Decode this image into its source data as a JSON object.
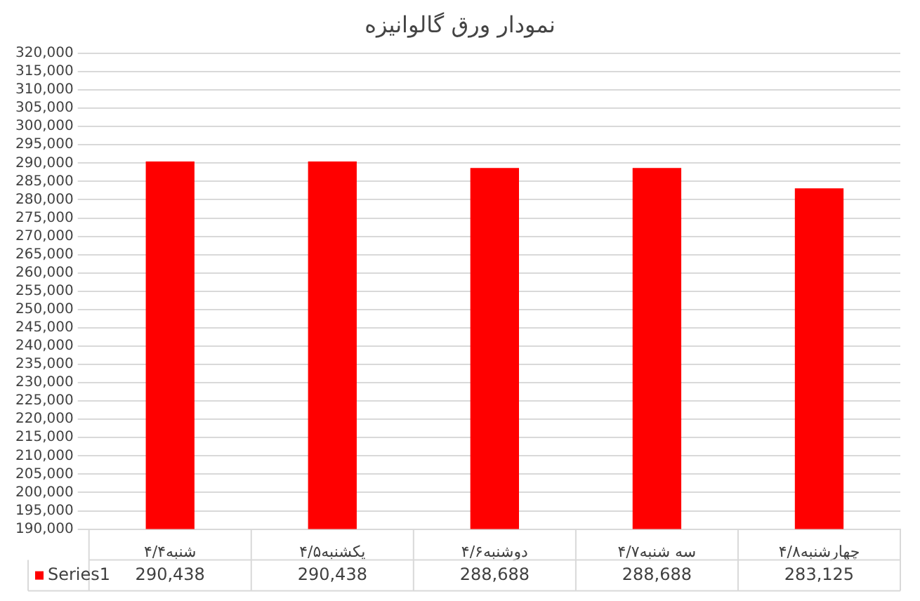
{
  "chart_data": {
    "type": "bar",
    "title": "نمودار ورق گالوانیزه",
    "categories": [
      "شنبه۴/۴",
      "یکشنبه۴/۵",
      "دوشنبه۴/۶",
      "سه شنبه۴/۷",
      "چهارشنبه۴/۸"
    ],
    "series": [
      {
        "name": "Series1",
        "color": "#ff0000",
        "values": [
          290438,
          290438,
          288688,
          288688,
          283125
        ],
        "value_labels": [
          "290,438",
          "290,438",
          "288,688",
          "288,688",
          "283,125"
        ]
      }
    ],
    "ylim": [
      190000,
      320000
    ],
    "yticks": [
      {
        "value": 190000,
        "label": "190,000"
      },
      {
        "value": 195000,
        "label": "195,000"
      },
      {
        "value": 200000,
        "label": "200,000"
      },
      {
        "value": 205000,
        "label": "205,000"
      },
      {
        "value": 210000,
        "label": "210,000"
      },
      {
        "value": 215000,
        "label": "215,000"
      },
      {
        "value": 220000,
        "label": "220,000"
      },
      {
        "value": 225000,
        "label": "225,000"
      },
      {
        "value": 230000,
        "label": "230,000"
      },
      {
        "value": 235000,
        "label": "235,000"
      },
      {
        "value": 240000,
        "label": "240,000"
      },
      {
        "value": 245000,
        "label": "245,000"
      },
      {
        "value": 250000,
        "label": "250,000"
      },
      {
        "value": 255000,
        "label": "255,000"
      },
      {
        "value": 260000,
        "label": "260,000"
      },
      {
        "value": 265000,
        "label": "265,000"
      },
      {
        "value": 270000,
        "label": "270,000"
      },
      {
        "value": 275000,
        "label": "275,000"
      },
      {
        "value": 280000,
        "label": "280,000"
      },
      {
        "value": 285000,
        "label": "285,000"
      },
      {
        "value": 290000,
        "label": "290,000"
      },
      {
        "value": 295000,
        "label": "295,000"
      },
      {
        "value": 300000,
        "label": "300,000"
      },
      {
        "value": 305000,
        "label": "305,000"
      },
      {
        "value": 310000,
        "label": "310,000"
      },
      {
        "value": 315000,
        "label": "315,000"
      },
      {
        "value": 320000,
        "label": "320,000"
      }
    ],
    "grid": "y"
  }
}
